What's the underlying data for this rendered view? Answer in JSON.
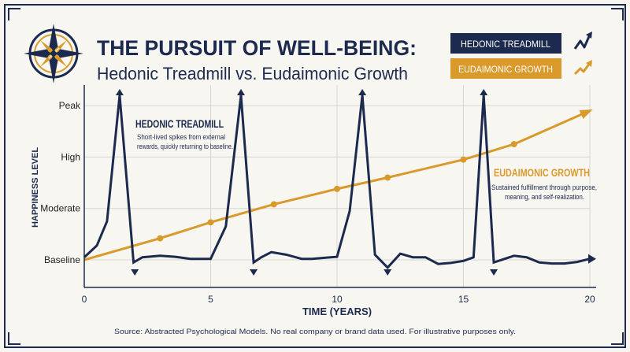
{
  "header": {
    "title": "THE PURSUIT OF WELL-BEING:",
    "subtitle": "Hedonic Treadmill vs. Eudaimonic Growth"
  },
  "legend": {
    "hedonic": "HEDONIC TREADMILL",
    "eudaimonic": "EUDAIMONIC GROWTH"
  },
  "annotations": {
    "hedonic_title": "HEDONIC TREADMILL",
    "hedonic_line1": "Short-lived spikes from external",
    "hedonic_line2": "rewards, quickly returning to baseline.",
    "eudaimonic_title": "EUDAIMONIC GROWTH",
    "eudaimonic_line1": "Sustained fulfillment through purpose,",
    "eudaimonic_line2": "meaning, and self-realization."
  },
  "footer": {
    "source": "Source: Abstracted Psychological Models. No real company or brand data used. For illustrative purposes only."
  },
  "colors": {
    "navy": "#1b2a4e",
    "gold": "#d99a2b",
    "grid": "#d5d5d5",
    "background": "#f8f6f0"
  },
  "chart_data": {
    "type": "line",
    "xlabel": "TIME (YEARS)",
    "ylabel": "HAPPINESS LEVEL",
    "xlim": [
      0,
      20
    ],
    "ylim": [
      0,
      3.3
    ],
    "x_ticks": [
      0,
      5,
      10,
      15,
      20
    ],
    "y_ticks": [
      {
        "value": 0,
        "label": "Baseline"
      },
      {
        "value": 1,
        "label": "Moderate"
      },
      {
        "value": 2,
        "label": "High"
      },
      {
        "value": 3,
        "label": "Peak"
      }
    ],
    "grid": true,
    "legend_position": "top-right",
    "series": [
      {
        "name": "HEDONIC TREADMILL",
        "color": "#1b2a4e",
        "points": [
          [
            0,
            0.05
          ],
          [
            0.5,
            0.28
          ],
          [
            0.9,
            0.75
          ],
          [
            1.4,
            3.2
          ],
          [
            1.95,
            -0.05
          ],
          [
            2.3,
            0.05
          ],
          [
            3.0,
            0.08
          ],
          [
            3.6,
            0.06
          ],
          [
            4.2,
            0.02
          ],
          [
            4.7,
            0.02
          ],
          [
            5.0,
            0.02
          ],
          [
            5.6,
            0.65
          ],
          [
            6.2,
            3.2
          ],
          [
            6.7,
            -0.05
          ],
          [
            7.0,
            0.05
          ],
          [
            7.4,
            0.15
          ],
          [
            8.0,
            0.1
          ],
          [
            8.6,
            0.02
          ],
          [
            9.0,
            0.02
          ],
          [
            9.5,
            0.04
          ],
          [
            10.0,
            0.06
          ],
          [
            10.5,
            0.95
          ],
          [
            11.0,
            3.2
          ],
          [
            11.5,
            0.1
          ],
          [
            12.0,
            -0.15
          ],
          [
            12.5,
            0.12
          ],
          [
            13.0,
            0.05
          ],
          [
            13.5,
            0.05
          ],
          [
            14.0,
            -0.08
          ],
          [
            14.5,
            -0.06
          ],
          [
            15.0,
            -0.02
          ],
          [
            15.4,
            0.05
          ],
          [
            15.8,
            3.2
          ],
          [
            16.2,
            -0.05
          ],
          [
            17.0,
            0.08
          ],
          [
            17.5,
            0.05
          ],
          [
            18.0,
            -0.05
          ],
          [
            18.5,
            -0.07
          ],
          [
            19.0,
            -0.07
          ],
          [
            19.5,
            -0.04
          ],
          [
            20.0,
            0.02
          ]
        ]
      },
      {
        "name": "EUDAIMONIC GROWTH",
        "color": "#d99a2b",
        "points": [
          [
            0,
            0
          ],
          [
            3,
            0.42
          ],
          [
            5,
            0.73
          ],
          [
            7.5,
            1.08
          ],
          [
            10,
            1.38
          ],
          [
            12,
            1.6
          ],
          [
            15,
            1.95
          ],
          [
            17,
            2.25
          ],
          [
            20,
            2.9
          ]
        ],
        "markers": [
          [
            3,
            0.42
          ],
          [
            5,
            0.73
          ],
          [
            7.5,
            1.08
          ],
          [
            10,
            1.38
          ],
          [
            12,
            1.6
          ],
          [
            15,
            1.95
          ],
          [
            17,
            2.25
          ]
        ]
      }
    ],
    "peak_arrows_x": [
      1.4,
      6.2,
      11.0,
      15.8
    ],
    "trough_arrows_x": [
      2.0,
      6.7,
      12.0,
      16.2
    ]
  }
}
